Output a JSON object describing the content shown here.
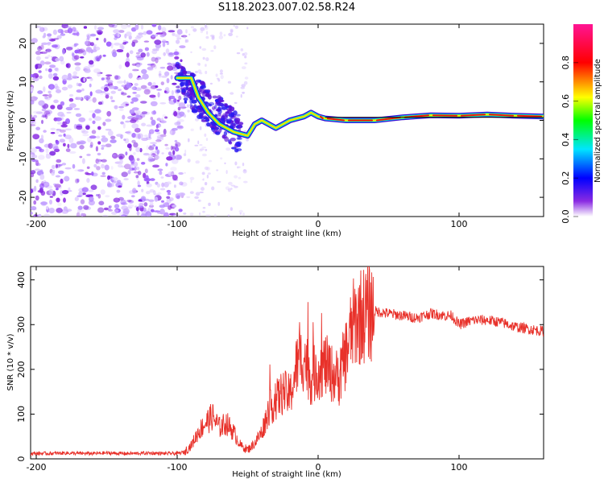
{
  "figure": {
    "title": "S118.2023.007.02.58.R24"
  },
  "chart_data": [
    {
      "type": "heatmap",
      "xlabel": "Height of straight line (km)",
      "ylabel": "Frequency (Hz)",
      "xlim": [
        -204,
        160
      ],
      "ylim": [
        -25,
        25
      ],
      "xticks": [
        -200,
        -100,
        0,
        100
      ],
      "yticks": [
        -20,
        -10,
        0,
        10,
        20
      ],
      "colorbar": {
        "label": "Normalized spectral amplitude",
        "range": [
          0,
          1
        ],
        "ticks": [
          0.0,
          0.2,
          0.4,
          0.6,
          0.8
        ],
        "tick_labels": [
          "0.0",
          "0.2",
          "0.4",
          "0.6",
          "0.8"
        ],
        "colormap": "rainbow (white-purple-blue-cyan-green-yellow-red-magenta)"
      },
      "ridge": [
        {
          "x": -100,
          "y": 11
        },
        {
          "x": -90,
          "y": 11
        },
        {
          "x": -85,
          "y": 6
        },
        {
          "x": -78,
          "y": 2
        },
        {
          "x": -70,
          "y": -1
        },
        {
          "x": -60,
          "y": -3
        },
        {
          "x": -50,
          "y": -4
        },
        {
          "x": -45,
          "y": -1
        },
        {
          "x": -40,
          "y": 0
        },
        {
          "x": -30,
          "y": -2
        },
        {
          "x": -25,
          "y": -1
        },
        {
          "x": -20,
          "y": 0
        },
        {
          "x": -10,
          "y": 1
        },
        {
          "x": -5,
          "y": 2
        },
        {
          "x": 0,
          "y": 1
        },
        {
          "x": 5,
          "y": 0.5
        },
        {
          "x": 20,
          "y": 0
        },
        {
          "x": 40,
          "y": 0
        },
        {
          "x": 60,
          "y": 0.8
        },
        {
          "x": 80,
          "y": 1.3
        },
        {
          "x": 100,
          "y": 1.2
        },
        {
          "x": 120,
          "y": 1.5
        },
        {
          "x": 140,
          "y": 1.2
        },
        {
          "x": 160,
          "y": 1
        }
      ],
      "noise_region": {
        "x": [
          -204,
          -95
        ],
        "y": [
          -25,
          25
        ]
      }
    },
    {
      "type": "line",
      "xlabel": "Height of straight line (km)",
      "ylabel": "SNR (10 * v/v)",
      "xlim": [
        -204,
        160
      ],
      "ylim": [
        0,
        430
      ],
      "xticks": [
        -200,
        -100,
        0,
        100
      ],
      "yticks": [
        0,
        100,
        200,
        300,
        400
      ],
      "series": [
        {
          "color": "#e8312a",
          "x": [
            -204,
            -190,
            -180,
            -170,
            -160,
            -150,
            -140,
            -130,
            -120,
            -110,
            -100,
            -95,
            -90,
            -85,
            -80,
            -75,
            -70,
            -65,
            -60,
            -55,
            -50,
            -45,
            -40,
            -35,
            -30,
            -25,
            -20,
            -15,
            -10,
            -5,
            0,
            5,
            10,
            15,
            20,
            25,
            30,
            40,
            50,
            60,
            70,
            80,
            90,
            95,
            100,
            110,
            120,
            130,
            140,
            150,
            160
          ],
          "y": [
            12,
            12,
            13,
            12,
            12,
            13,
            12,
            12,
            13,
            12,
            12,
            15,
            30,
            60,
            80,
            95,
            70,
            80,
            60,
            30,
            20,
            35,
            60,
            110,
            130,
            150,
            140,
            210,
            230,
            180,
            200,
            210,
            190,
            180,
            240,
            300,
            320,
            330,
            325,
            320,
            315,
            325,
            320,
            320,
            300,
            310,
            310,
            305,
            295,
            290,
            285
          ]
        }
      ]
    }
  ]
}
